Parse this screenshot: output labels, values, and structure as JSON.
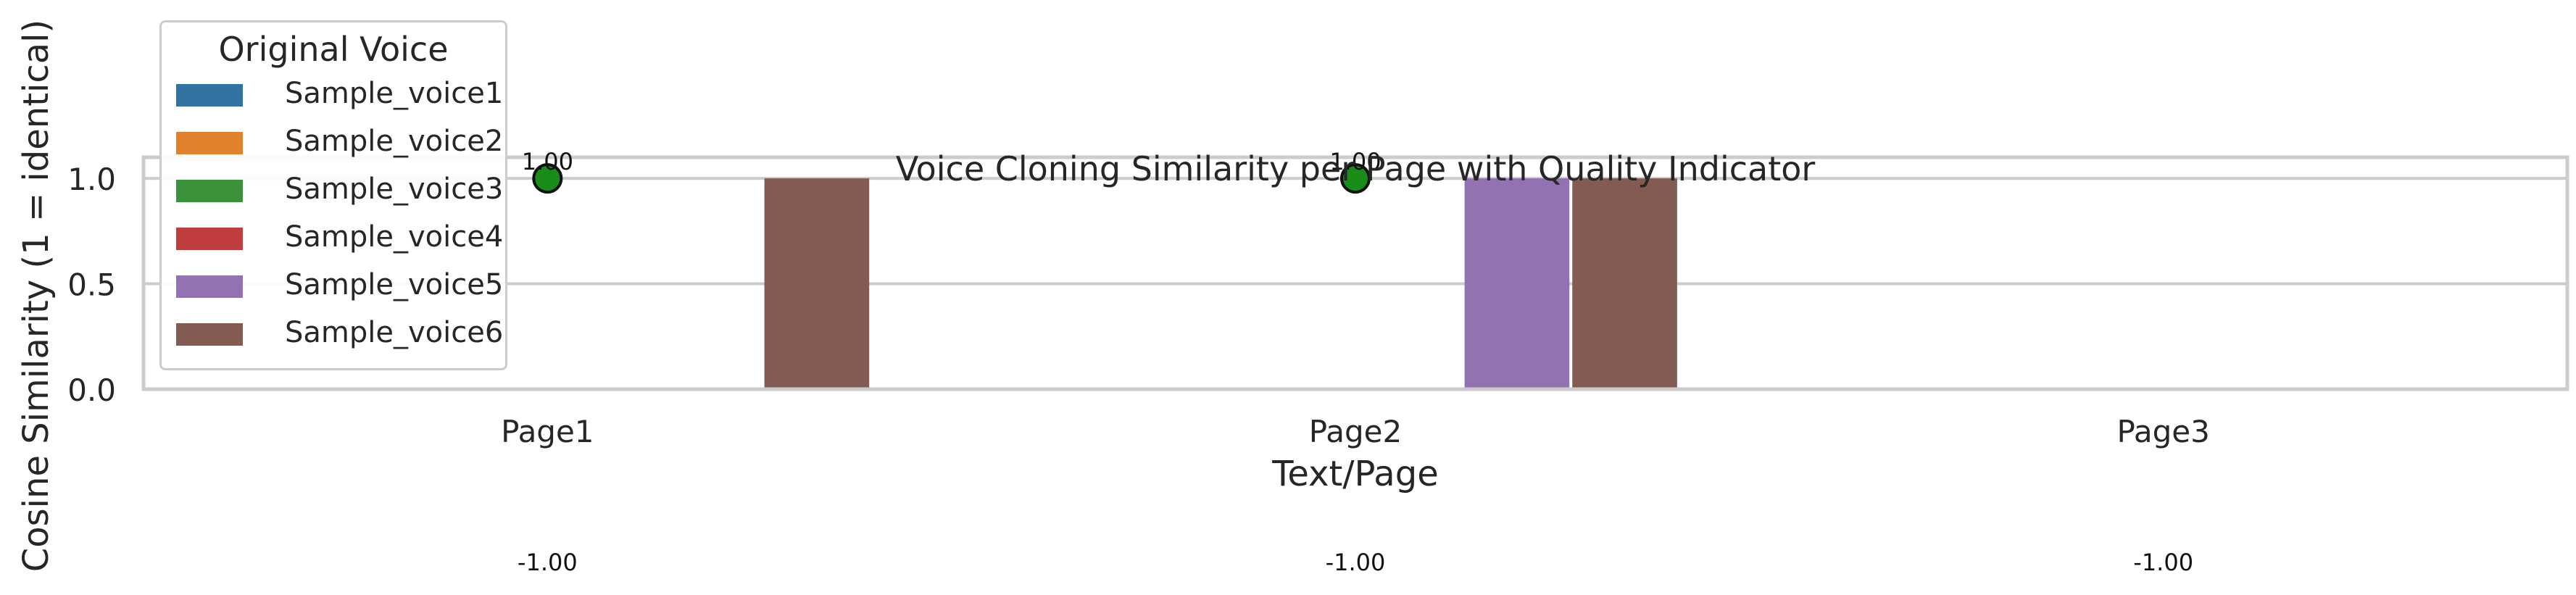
{
  "chart_data": {
    "type": "bar",
    "title": "Voice Cloning Similarity per Page with Quality Indicator",
    "xlabel": "Text/Page",
    "ylabel": "Cosine Similarity (1 = identical)",
    "categories": [
      "Page1",
      "Page2",
      "Page3"
    ],
    "ylim": [
      0,
      1.1
    ],
    "yticks": [
      "0.0",
      "0.5",
      "1.0"
    ],
    "grid": true,
    "legend": {
      "title": "Original Voice",
      "placement": "upper-left"
    },
    "series": [
      {
        "name": "Sample_voice1",
        "color": "#3274a1",
        "values": [
          null,
          null,
          null
        ]
      },
      {
        "name": "Sample_voice2",
        "color": "#e1812c",
        "values": [
          null,
          null,
          null
        ]
      },
      {
        "name": "Sample_voice3",
        "color": "#3a923a",
        "values": [
          null,
          null,
          null
        ]
      },
      {
        "name": "Sample_voice4",
        "color": "#c03d3e",
        "values": [
          null,
          null,
          null
        ]
      },
      {
        "name": "Sample_voice5",
        "color": "#9372b2",
        "values": [
          null,
          1.0,
          null
        ]
      },
      {
        "name": "Sample_voice6",
        "color": "#845b53",
        "values": [
          1.0,
          1.0,
          null
        ]
      }
    ],
    "quality_markers": {
      "color": "#1a8c1a",
      "values": [
        1.0,
        1.0,
        null
      ],
      "labels": [
        "1.00",
        "1.00",
        null
      ]
    },
    "bottom_labels": [
      "-1.00",
      "-1.00",
      "-1.00"
    ]
  }
}
